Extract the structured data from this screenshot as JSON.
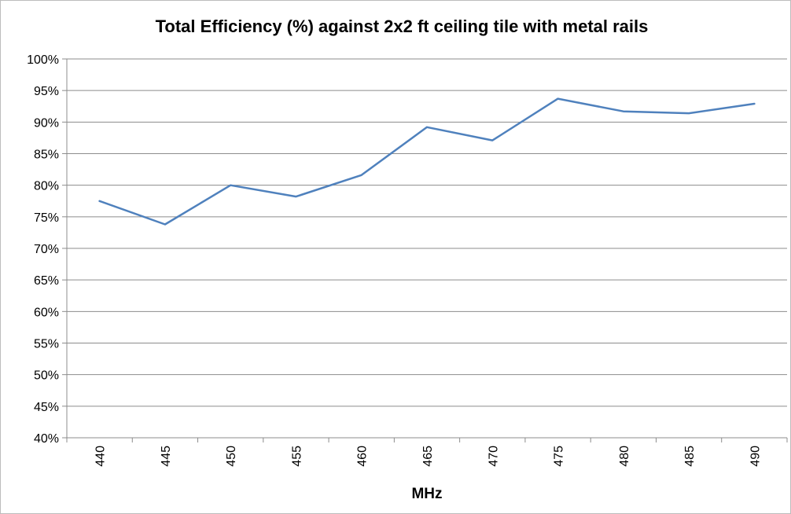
{
  "chart_data": {
    "type": "line",
    "title": "Total Efficiency (%) against 2x2 ft ceiling tile with metal rails",
    "xlabel": "MHz",
    "ylabel": "",
    "categories": [
      "440",
      "445",
      "450",
      "455",
      "460",
      "465",
      "470",
      "475",
      "480",
      "485",
      "490"
    ],
    "series": [
      {
        "values": [
          77.5,
          73.8,
          80.0,
          78.2,
          81.6,
          89.2,
          87.1,
          93.7,
          91.7,
          91.4,
          92.9
        ],
        "color": "#4f81bd"
      }
    ],
    "ylim": [
      40,
      100
    ],
    "y_ticks": [
      "40%",
      "45%",
      "50%",
      "55%",
      "60%",
      "65%",
      "70%",
      "75%",
      "80%",
      "85%",
      "90%",
      "95%",
      "100%"
    ],
    "grid": true,
    "legend": "none"
  }
}
